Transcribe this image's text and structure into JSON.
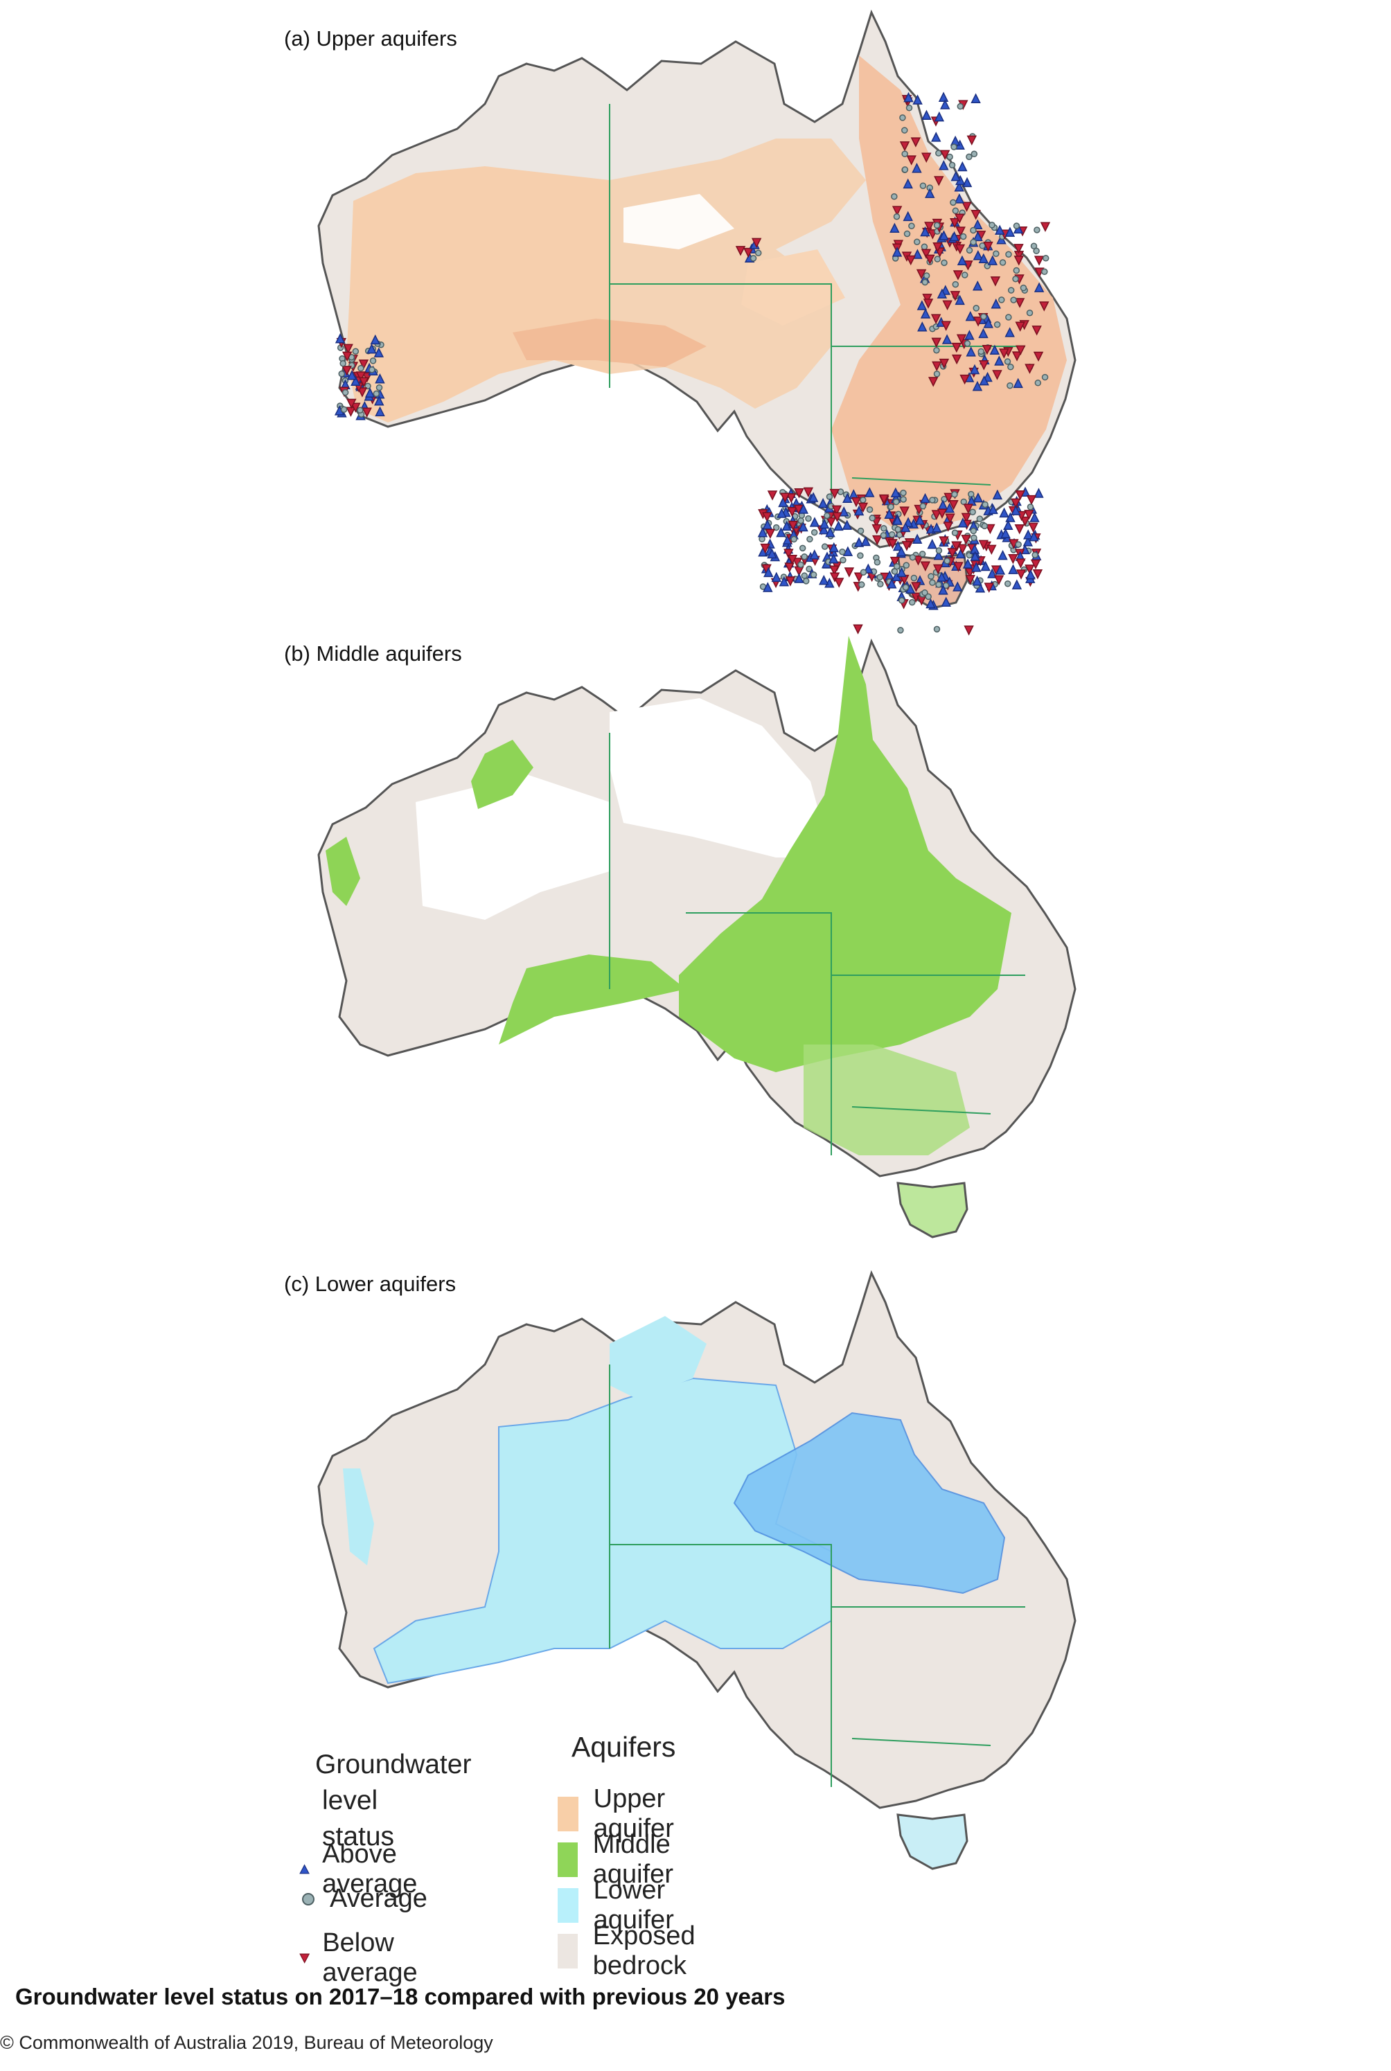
{
  "panels": [
    {
      "label": "(a) Upper aquifers",
      "fill": "#f6cfad",
      "mark": "#e9a98b",
      "symbols": "upper"
    },
    {
      "label": "(b) Middle aquifers",
      "fill": "#8ed456",
      "mark": "#6fbf3f",
      "symbols": "middle"
    },
    {
      "label": "(c) Lower aquifers",
      "fill": "#b7ecf6",
      "mark": "#6aa8e8",
      "symbols": "lower"
    }
  ],
  "legend": {
    "status_title_line1": "Groundwater",
    "status_title_line2": "level status",
    "status_items": [
      {
        "label": "Above average",
        "color": "#2f55c8"
      },
      {
        "label": "Average",
        "color": "#7b9498"
      },
      {
        "label": "Below average",
        "color": "#c2203a"
      }
    ],
    "aquifer_title": "Aquifers",
    "aquifer_items": [
      {
        "label": "Upper aquifer",
        "color": "#f8cfa8"
      },
      {
        "label": "Middle aquifer",
        "color": "#8fd558"
      },
      {
        "label": "Lower aquifer",
        "color": "#b8f0fb"
      },
      {
        "label": "Exposed bedrock",
        "color": "#ece6e1"
      }
    ]
  },
  "caption": "Groundwater level status on 2017–18 compared with previous 20 years",
  "copyright": "© Commonwealth of Australia 2019, Bureau of Meteorology",
  "colors": {
    "bedrock": "#ece6e1",
    "outline": "#555555",
    "border": "#2e9e5e"
  }
}
